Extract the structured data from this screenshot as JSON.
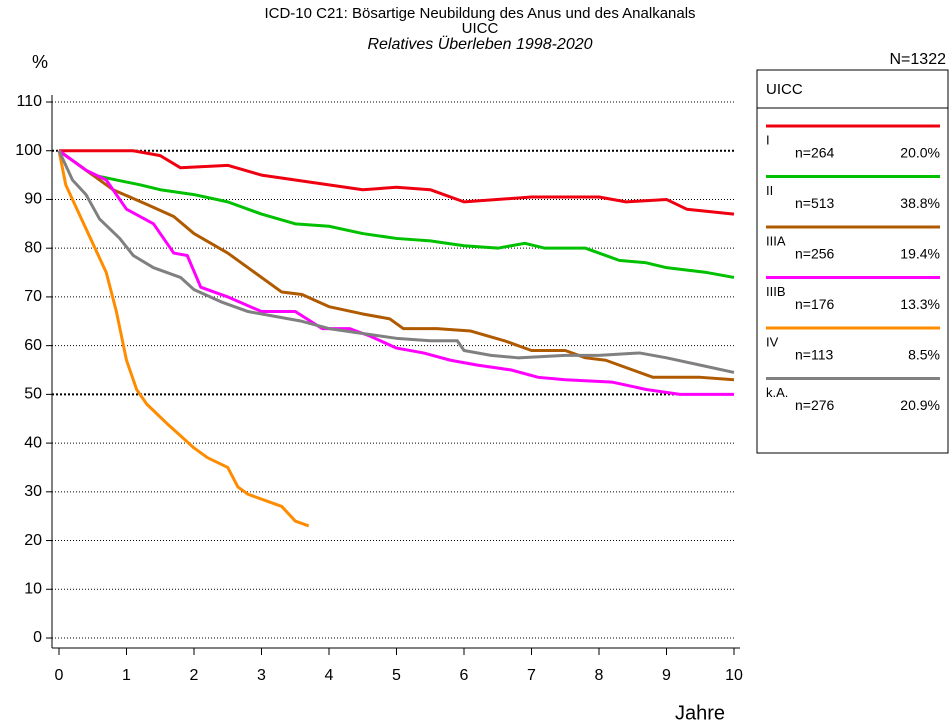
{
  "chart_data": {
    "type": "line",
    "title": "ICD-10 C21: Bösartige Neubildung des Anus und des Analkanals",
    "subtitle": "UICC",
    "subtitle2": "Relatives Überleben 1998-2020",
    "y_label": "%",
    "x_label": "Jahre",
    "total_label": "N=1322",
    "legend_title": "UICC",
    "legend": "right",
    "grid": true,
    "bold_grid": [
      50,
      100
    ],
    "xlim": [
      0,
      10
    ],
    "ylim": [
      0,
      110
    ],
    "xticks": [
      0,
      1,
      2,
      3,
      4,
      5,
      6,
      7,
      8,
      9,
      10
    ],
    "yticks": [
      0,
      10,
      20,
      30,
      40,
      50,
      60,
      70,
      80,
      90,
      100,
      110
    ],
    "series": [
      {
        "name": "I",
        "n_label": "n=264",
        "share_label": "20.0%",
        "color": "#ee0010",
        "x": [
          0,
          1.1,
          1.5,
          1.8,
          2.5,
          3,
          3.5,
          4,
          4.5,
          5,
          5.5,
          6,
          7,
          8,
          8.4,
          9,
          9.3,
          10
        ],
        "values": [
          100,
          100,
          99,
          96.5,
          97,
          95,
          94,
          93,
          92,
          92.5,
          92,
          89.5,
          90.5,
          90.5,
          89.5,
          90,
          88,
          87
        ]
      },
      {
        "name": "II",
        "n_label": "n=513",
        "share_label": "38.8%",
        "color": "#00c000",
        "x": [
          0,
          0.5,
          1.2,
          1.5,
          2,
          2.5,
          3,
          3.5,
          4,
          4.5,
          5,
          5.5,
          6,
          6.5,
          6.9,
          7.2,
          7.8,
          8,
          8.3,
          8.7,
          9,
          9.6,
          10
        ],
        "values": [
          100,
          95,
          93,
          92,
          91,
          89.5,
          87,
          85,
          84.5,
          83,
          82,
          81.5,
          80.5,
          80,
          81,
          80,
          80,
          79,
          77.5,
          77,
          76,
          75,
          74
        ]
      },
      {
        "name": "IIIA",
        "n_label": "n=256",
        "share_label": "19.4%",
        "color": "#b05a00",
        "x": [
          0,
          0.4,
          0.8,
          1.3,
          1.7,
          2,
          2.5,
          2.8,
          3.3,
          3.6,
          4,
          4.5,
          4.9,
          5.1,
          5.6,
          6.1,
          6.6,
          7,
          7.5,
          7.8,
          8.1,
          8.5,
          8.8,
          9.5,
          10
        ],
        "values": [
          100,
          96,
          92,
          89,
          86.5,
          83,
          79,
          76,
          71,
          70.5,
          68,
          66.5,
          65.5,
          63.5,
          63.5,
          63,
          61,
          59,
          59,
          57.5,
          57,
          55,
          53.5,
          53.5,
          53
        ]
      },
      {
        "name": "IIIB",
        "n_label": "n=176",
        "share_label": "13.3%",
        "color": "#ff00ff",
        "x": [
          0,
          0.4,
          0.7,
          1,
          1.4,
          1.7,
          1.9,
          2.1,
          2.5,
          3,
          3.5,
          3.9,
          4.3,
          4.6,
          5,
          5.4,
          5.8,
          6.2,
          6.7,
          7.1,
          7.5,
          8.2,
          8.7,
          9.2,
          10
        ],
        "values": [
          100,
          96,
          94,
          88,
          85,
          79,
          78.5,
          72,
          70,
          67,
          67,
          63.5,
          63.5,
          62,
          59.5,
          58.5,
          57,
          56,
          55,
          53.5,
          53,
          52.5,
          51,
          50,
          50
        ]
      },
      {
        "name": "IV",
        "n_label": "n=113",
        "share_label": "8.5%",
        "color": "#ff8c00",
        "x": [
          0,
          0.1,
          0.3,
          0.5,
          0.7,
          0.85,
          1,
          1.15,
          1.3,
          1.6,
          1.8,
          2,
          2.2,
          2.5,
          2.65,
          2.8,
          3.1,
          3.3,
          3.5,
          3.7
        ],
        "values": [
          100,
          93,
          87,
          81,
          75,
          67,
          57,
          51,
          48,
          44,
          41.5,
          39,
          37,
          35,
          31,
          29.5,
          28,
          27,
          24,
          23
        ]
      },
      {
        "name": "k.A.",
        "n_label": "n=276",
        "share_label": "20.9%",
        "color": "#808080",
        "x": [
          0,
          0.2,
          0.4,
          0.6,
          0.9,
          1.1,
          1.4,
          1.8,
          2,
          2.4,
          2.8,
          3.2,
          3.6,
          4,
          4.5,
          5,
          5.5,
          5.9,
          6,
          6.4,
          6.8,
          7.5,
          8,
          8.6,
          9,
          9.5,
          10
        ],
        "values": [
          100,
          94,
          91,
          86,
          82,
          78.5,
          76,
          74,
          71.5,
          69,
          67,
          66,
          65,
          63.5,
          62.5,
          61.5,
          61,
          61,
          59,
          58,
          57.5,
          58,
          58,
          58.5,
          57.5,
          56,
          54.5
        ]
      }
    ]
  }
}
